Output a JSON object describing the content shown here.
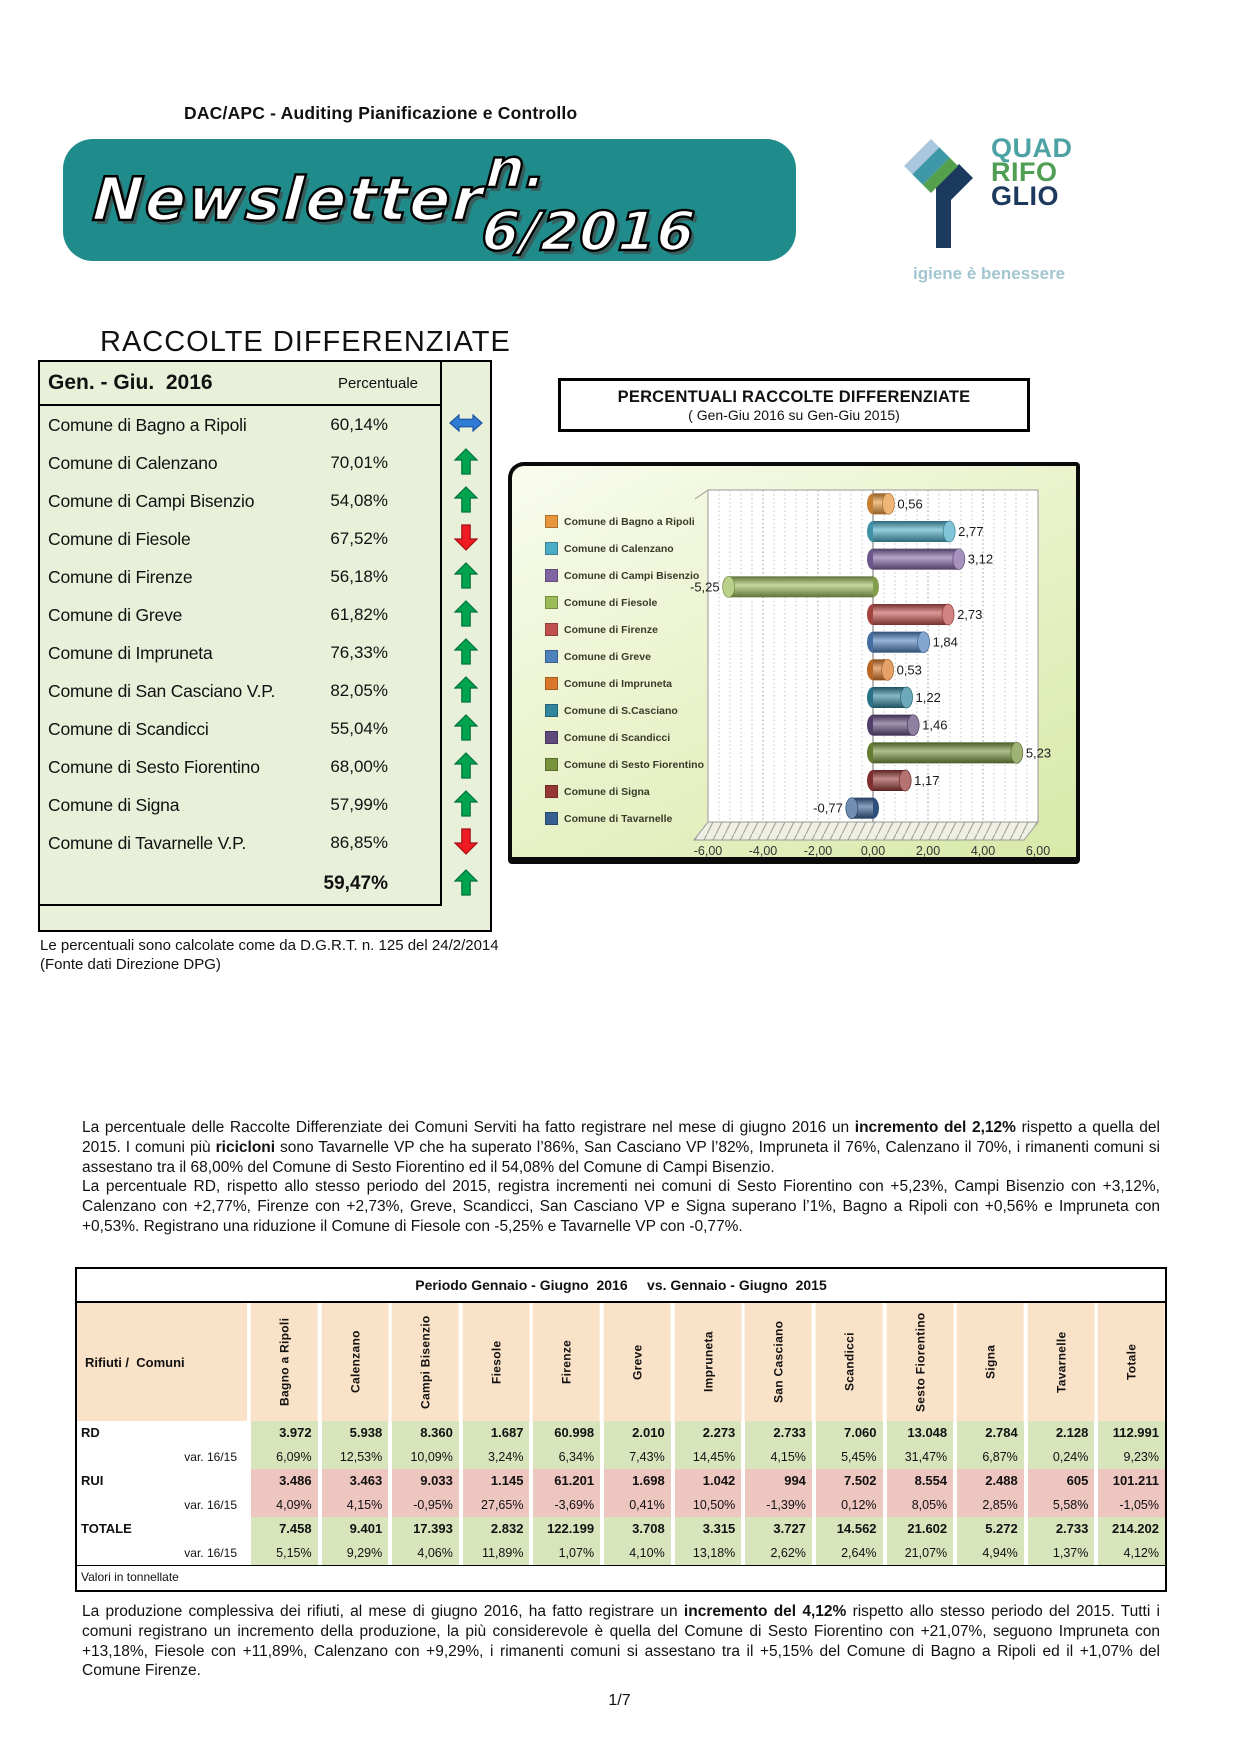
{
  "colors": {
    "banner_teal": "#1f8b8b",
    "table_green_bg": "#e9f0da",
    "tonnage_peach": "#f9e2c7",
    "tonnage_green": "#d8e4bc",
    "tonnage_pink": "#eec6c0",
    "arrow_up_green": "#00a44f",
    "arrow_down_red": "#ee1b24",
    "arrow_flat_blue": "#2f7bd6"
  },
  "header": {
    "department": "DAC/APC - Auditing Pianificazione e Controllo",
    "banner_title": "Newsletter",
    "banner_number": "n.  6/2016",
    "logo": {
      "line1": "QUAD",
      "line2": "RIFO",
      "line3": "GLIO",
      "tagline": "igiene è benessere"
    }
  },
  "rd_table": {
    "title": "RACCOLTE DIFFERENZIATE",
    "period_label": "Gen. - Giu.  2016",
    "percent_label": "Percentuale",
    "rows": [
      {
        "name": "Comune di Bagno a Ripoli",
        "value": "60,14%",
        "trend": "flat"
      },
      {
        "name": "Comune di Calenzano",
        "value": "70,01%",
        "trend": "up"
      },
      {
        "name": "Comune di Campi Bisenzio",
        "value": "54,08%",
        "trend": "up"
      },
      {
        "name": "Comune di Fiesole",
        "value": "67,52%",
        "trend": "down"
      },
      {
        "name": "Comune di Firenze",
        "value": "56,18%",
        "trend": "up"
      },
      {
        "name": "Comune di Greve",
        "value": "61,82%",
        "trend": "up"
      },
      {
        "name": "Comune di Impruneta",
        "value": "76,33%",
        "trend": "up"
      },
      {
        "name": "Comune di San Casciano V.P.",
        "value": "82,05%",
        "trend": "up"
      },
      {
        "name": "Comune di Scandicci",
        "value": "55,04%",
        "trend": "up"
      },
      {
        "name": "Comune di Sesto Fiorentino",
        "value": "68,00%",
        "trend": "up"
      },
      {
        "name": "Comune di Signa",
        "value": "57,99%",
        "trend": "up"
      },
      {
        "name": "Comune di Tavarnelle V.P.",
        "value": "86,85%",
        "trend": "down"
      }
    ],
    "total": {
      "value": "59,47%",
      "trend": "up"
    },
    "footnote1": "Le percentuali sono calcolate come da D.G.R.T. n. 125 del 24/2/2014",
    "footnote2": "(Fonte dati Direzione DPG)"
  },
  "chart_data": {
    "type": "bar",
    "orientation": "horizontal",
    "title": "PERCENTUALI RACCOLTE DIFFERENZIATE",
    "subtitle": "( Gen-Giu 2016 su Gen-Giu 2015)",
    "legend_position": "left",
    "categories": [
      "Comune di Bagno a Ripoli",
      "Comune di Calenzano",
      "Comune di Campi Bisenzio",
      "Comune di Fiesole",
      "Comune di Firenze",
      "Comune di Greve",
      "Comune di Impruneta",
      "Comune di S.Casciano",
      "Comune di Scandicci",
      "Comune di Sesto Fiorentino",
      "Comune di Signa",
      "Comune di Tavarnelle"
    ],
    "values": [
      0.56,
      2.77,
      3.12,
      -5.25,
      2.73,
      1.84,
      0.53,
      1.22,
      1.46,
      5.23,
      1.17,
      -0.77
    ],
    "labels": [
      "0,56",
      "2,77",
      "3,12",
      "-5,25",
      "2,73",
      "1,84",
      "0,53",
      "1,22",
      "1,46",
      "5,23",
      "1,17",
      "-0,77"
    ],
    "colors": [
      "#e8963c",
      "#4bacc6",
      "#8064a2",
      "#9bbb59",
      "#c0504d",
      "#4f81bd",
      "#d9782a",
      "#31859c",
      "#604a7b",
      "#77933c",
      "#953735",
      "#366092"
    ],
    "xlim": [
      -6,
      6
    ],
    "tick_values": [
      -6,
      -4,
      -2,
      0,
      2,
      4,
      6
    ],
    "x_ticks": [
      "-6,00",
      "-4,00",
      "-2,00",
      "0,00",
      "2,00",
      "4,00",
      "6,00"
    ],
    "grid": true
  },
  "paragraph1": {
    "p1": "La percentuale delle Raccolte Differenziate dei Comuni Serviti ha fatto registrare nel mese di giugno 2016 un ",
    "b1": "incremento del 2,12%",
    "p2": " rispetto a quella del 2015. I comuni più ",
    "b2": "ricicloni",
    "p3": " sono Tavarnelle VP che ha superato l’86%, San Casciano VP  l’82%, Impruneta il 76%, Calenzano il 70%, i rimanenti comuni si assestano tra il 68,00% del Comune di Sesto Fiorentino ed il 54,08% del Comune di Campi Bisenzio.",
    "p4": "La percentuale RD, rispetto allo stesso periodo del 2015, registra incrementi nei comuni di Sesto Fiorentino con +5,23%, Campi Bisenzio con +3,12%, Calenzano con +2,77%, Firenze con +2,73%, Greve, Scandicci, San Casciano VP e Signa superano l’1%, Bagno a Ripoli con +0,56% e Impruneta con +0,53%. Registrano una riduzione il Comune di Fiesole con -5,25% e Tavarnelle VP con -0,77%."
  },
  "tonnage_table": {
    "title": "Periodo Gennaio - Giugno  2016     vs. Gennaio - Giugno  2015",
    "corner_label": "Rifiuti /  Comuni",
    "columns": [
      "Bagno a Ripoli",
      "Calenzano",
      "Campi Bisenzio",
      "Fiesole",
      "Firenze",
      "Greve",
      "Impruneta",
      "San Casciano",
      "Scandicci",
      "Sesto Fiorentino",
      "Signa",
      "Tavarnelle",
      "Totale"
    ],
    "rows": [
      {
        "label": "RD",
        "tone": "green",
        "variant": false,
        "values": [
          "3.972",
          "5.938",
          "8.360",
          "1.687",
          "60.998",
          "2.010",
          "2.273",
          "2.733",
          "7.060",
          "13.048",
          "2.784",
          "2.128",
          "112.991"
        ]
      },
      {
        "label": "var. 16/15",
        "tone": "green",
        "variant": true,
        "values": [
          "6,09%",
          "12,53%",
          "10,09%",
          "3,24%",
          "6,34%",
          "7,43%",
          "14,45%",
          "4,15%",
          "5,45%",
          "31,47%",
          "6,87%",
          "0,24%",
          "9,23%"
        ]
      },
      {
        "label": "RUI",
        "tone": "pink",
        "variant": false,
        "values": [
          "3.486",
          "3.463",
          "9.033",
          "1.145",
          "61.201",
          "1.698",
          "1.042",
          "994",
          "7.502",
          "8.554",
          "2.488",
          "605",
          "101.211"
        ]
      },
      {
        "label": "var. 16/15",
        "tone": "pink",
        "variant": true,
        "values": [
          "4,09%",
          "4,15%",
          "-0,95%",
          "27,65%",
          "-3,69%",
          "0,41%",
          "10,50%",
          "-1,39%",
          "0,12%",
          "8,05%",
          "2,85%",
          "5,58%",
          "-1,05%"
        ]
      },
      {
        "label": "TOTALE",
        "tone": "green",
        "variant": false,
        "values": [
          "7.458",
          "9.401",
          "17.393",
          "2.832",
          "122.199",
          "3.708",
          "3.315",
          "3.727",
          "14.562",
          "21.602",
          "5.272",
          "2.733",
          "214.202"
        ]
      },
      {
        "label": "var. 16/15",
        "tone": "green",
        "variant": true,
        "values": [
          "5,15%",
          "9,29%",
          "4,06%",
          "11,89%",
          "1,07%",
          "4,10%",
          "13,18%",
          "2,62%",
          "2,64%",
          "21,07%",
          "4,94%",
          "1,37%",
          "4,12%"
        ]
      }
    ],
    "footer": "Valori in tonnellate"
  },
  "paragraph2": {
    "p1": "La produzione complessiva dei rifiuti, al mese di giugno 2016, ha fatto registrare un ",
    "b1": "incremento del 4,12%",
    "p2": " rispetto allo stesso periodo del 2015. Tutti i comuni registrano un incremento della produzione, la più considerevole è quella del Comune di Sesto Fiorentino con +21,07%, seguono Impruneta con +13,18%, Fiesole con +11,89%, Calenzano con +9,29%, i rimanenti comuni si assestano tra il +5,15% del Comune di Bagno a Ripoli ed il +1,07% del Comune Firenze."
  },
  "page_number": "1/7"
}
